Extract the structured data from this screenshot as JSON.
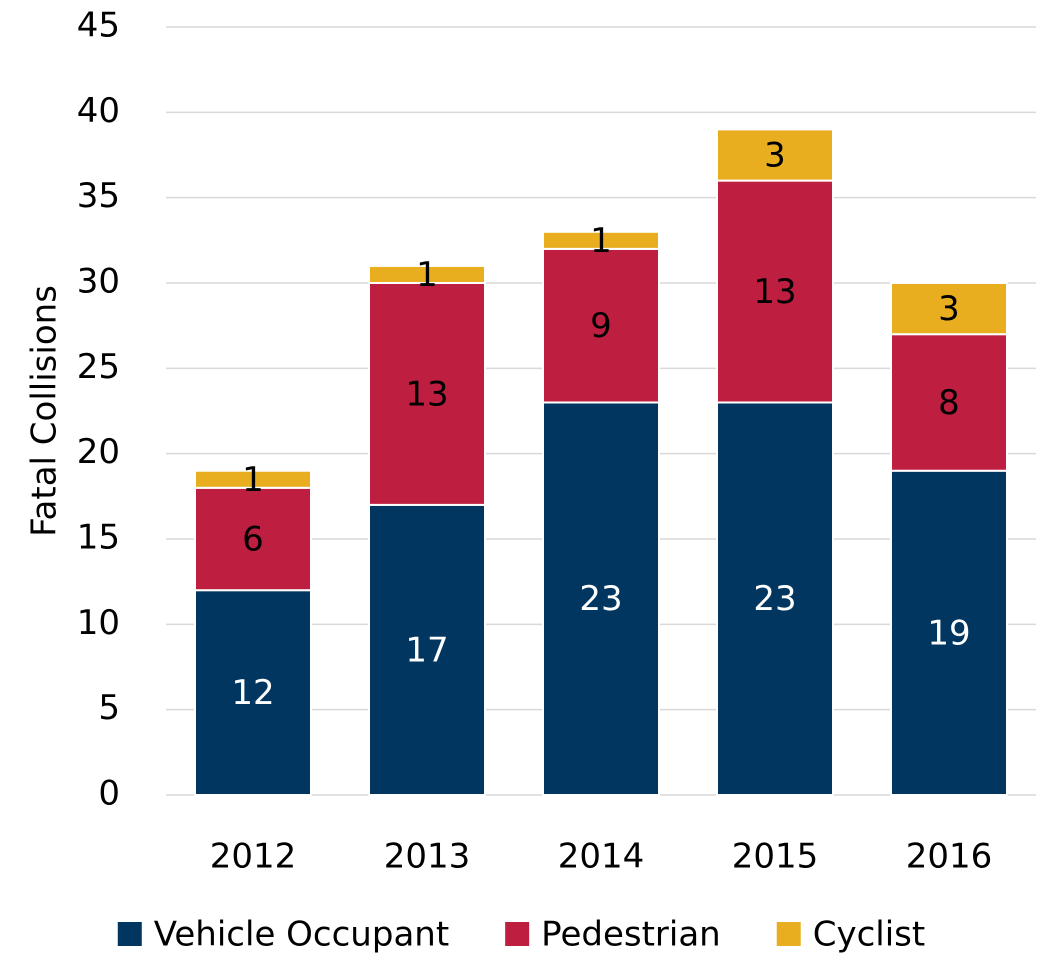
{
  "chart_data": {
    "type": "stacked_bar",
    "y_label": "Fatal Collisions",
    "categories": [
      "2012",
      "2013",
      "2014",
      "2015",
      "2016"
    ],
    "series": [
      {
        "name": "Vehicle Occupant",
        "color": "#003660",
        "values": [
          12,
          17,
          23,
          23,
          19
        ]
      },
      {
        "name": "Pedestrian",
        "color": "#be1e3f",
        "values": [
          6,
          13,
          9,
          13,
          8
        ]
      },
      {
        "name": "Cyclist",
        "color": "#e8ae20",
        "values": [
          1,
          1,
          1,
          3,
          3
        ]
      }
    ],
    "ylim": [
      0,
      45
    ],
    "yticks": [
      0,
      5,
      10,
      15,
      20,
      25,
      30,
      35,
      40,
      45
    ],
    "grid": true,
    "legend": "bottom"
  }
}
